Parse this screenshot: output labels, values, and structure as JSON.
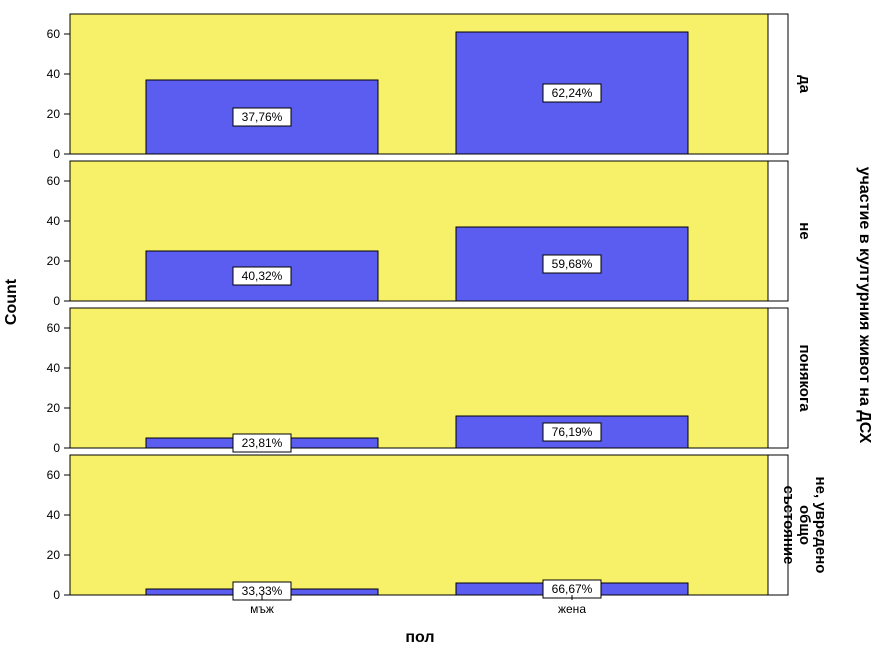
{
  "chart_data": {
    "type": "bar",
    "layout": "faceted-rows",
    "xlabel": "пол",
    "ylabel": "Count",
    "facet_label": "участие в културния живот на ДСХ",
    "categories": [
      "мъж",
      "жена"
    ],
    "ylim": [
      0,
      70
    ],
    "yticks": [
      0,
      20,
      40,
      60
    ],
    "colors": {
      "panel_bg": "#f7f16a",
      "bar": "#5b5cf0"
    },
    "panels": [
      {
        "name": "да",
        "lines": [
          "да"
        ],
        "values": [
          37,
          61
        ],
        "labels": [
          "37,76%",
          "62,24%"
        ]
      },
      {
        "name": "не",
        "lines": [
          "не"
        ],
        "values": [
          25,
          37
        ],
        "labels": [
          "40,32%",
          "59,68%"
        ]
      },
      {
        "name": "понякога",
        "lines": [
          "понякога"
        ],
        "values": [
          5,
          16
        ],
        "labels": [
          "23,81%",
          "76,19%"
        ]
      },
      {
        "name": "не, увредено общо състояние",
        "lines": [
          "не, увредено",
          "общо",
          "състояние"
        ],
        "values": [
          3,
          6
        ],
        "labels": [
          "33,33%",
          "66,67%"
        ]
      }
    ]
  }
}
